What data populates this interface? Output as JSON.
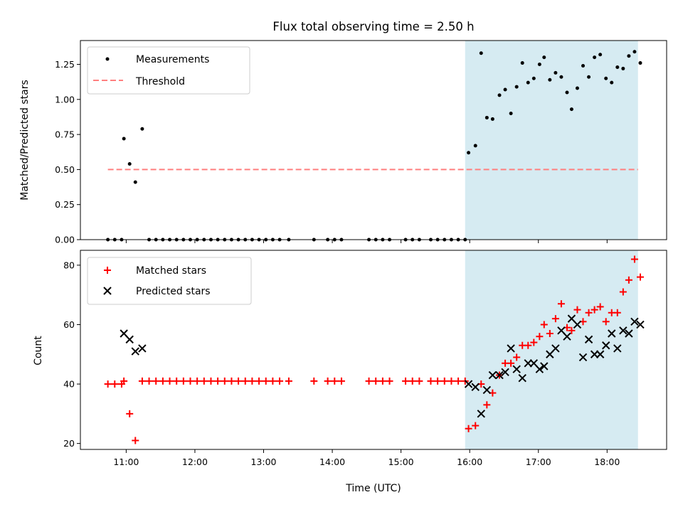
{
  "chart_data": [
    {
      "type": "scatter",
      "title": "Flux total observing time = 2.50 h",
      "xlabel": "",
      "ylabel": "Matched/Predicted stars",
      "ylim": [
        0,
        1.42
      ],
      "yticks": [
        "0.00",
        "0.25",
        "0.50",
        "0.75",
        "1.00",
        "1.25"
      ],
      "ytick_values": [
        0,
        0.25,
        0.5,
        0.75,
        1.0,
        1.25
      ],
      "xlim": [
        "10:20",
        "18:52"
      ],
      "x_tick_labels_visible": false,
      "legend": "top-left",
      "shaded_span": {
        "x0": "15:56",
        "x1": "18:27",
        "color": "#add8e6"
      },
      "threshold": {
        "name": "Threshold",
        "y": 0.5,
        "x0": "10:44",
        "x1": "18:27",
        "color": "#ff7f7f",
        "style": "dashed"
      },
      "series": [
        {
          "name": "Measurements",
          "marker": "dot",
          "color": "#000000",
          "points": [
            [
              "10:44",
              0
            ],
            [
              "10:50",
              0
            ],
            [
              "10:56",
              0
            ],
            [
              "10:58",
              0.72
            ],
            [
              "11:03",
              0.54
            ],
            [
              "11:08",
              0.41
            ],
            [
              "11:14",
              0.79
            ],
            [
              "11:20",
              0
            ],
            [
              "11:26",
              0
            ],
            [
              "11:32",
              0
            ],
            [
              "11:38",
              0
            ],
            [
              "11:44",
              0
            ],
            [
              "11:50",
              0
            ],
            [
              "11:56",
              0
            ],
            [
              "12:02",
              0
            ],
            [
              "12:08",
              0
            ],
            [
              "12:14",
              0
            ],
            [
              "12:20",
              0
            ],
            [
              "12:26",
              0
            ],
            [
              "12:32",
              0
            ],
            [
              "12:38",
              0
            ],
            [
              "12:44",
              0
            ],
            [
              "12:50",
              0
            ],
            [
              "12:56",
              0
            ],
            [
              "13:02",
              0
            ],
            [
              "13:08",
              0
            ],
            [
              "13:14",
              0
            ],
            [
              "13:22",
              0
            ],
            [
              "13:44",
              0
            ],
            [
              "13:56",
              0
            ],
            [
              "14:02",
              0
            ],
            [
              "14:08",
              0
            ],
            [
              "14:32",
              0
            ],
            [
              "14:38",
              0
            ],
            [
              "14:44",
              0
            ],
            [
              "14:50",
              0
            ],
            [
              "15:04",
              0
            ],
            [
              "15:10",
              0
            ],
            [
              "15:16",
              0
            ],
            [
              "15:26",
              0
            ],
            [
              "15:32",
              0
            ],
            [
              "15:38",
              0
            ],
            [
              "15:44",
              0
            ],
            [
              "15:50",
              0
            ],
            [
              "15:56",
              0
            ],
            [
              "15:59",
              0.62
            ],
            [
              "16:05",
              0.67
            ],
            [
              "16:10",
              1.33
            ],
            [
              "16:15",
              0.87
            ],
            [
              "16:20",
              0.86
            ],
            [
              "16:26",
              1.03
            ],
            [
              "16:31",
              1.07
            ],
            [
              "16:36",
              0.9
            ],
            [
              "16:41",
              1.09
            ],
            [
              "16:46",
              1.26
            ],
            [
              "16:51",
              1.12
            ],
            [
              "16:56",
              1.15
            ],
            [
              "17:01",
              1.25
            ],
            [
              "17:05",
              1.3
            ],
            [
              "17:10",
              1.14
            ],
            [
              "17:15",
              1.19
            ],
            [
              "17:20",
              1.16
            ],
            [
              "17:25",
              1.05
            ],
            [
              "17:29",
              0.93
            ],
            [
              "17:34",
              1.08
            ],
            [
              "17:39",
              1.24
            ],
            [
              "17:44",
              1.16
            ],
            [
              "17:49",
              1.3
            ],
            [
              "17:54",
              1.32
            ],
            [
              "17:59",
              1.15
            ],
            [
              "18:04",
              1.12
            ],
            [
              "18:09",
              1.23
            ],
            [
              "18:14",
              1.22
            ],
            [
              "18:19",
              1.31
            ],
            [
              "18:24",
              1.34
            ],
            [
              "18:29",
              1.26
            ]
          ]
        }
      ]
    },
    {
      "type": "scatter",
      "title": "",
      "xlabel": "Time (UTC)",
      "ylabel": "Count",
      "ylim": [
        18,
        85
      ],
      "yticks": [
        "20",
        "40",
        "60",
        "80"
      ],
      "ytick_values": [
        20,
        40,
        60,
        80
      ],
      "xlim": [
        "10:20",
        "18:52"
      ],
      "xticks": [
        "11:00",
        "12:00",
        "13:00",
        "14:00",
        "15:00",
        "16:00",
        "17:00",
        "18:00"
      ],
      "legend": "top-left",
      "shaded_span": {
        "x0": "15:56",
        "x1": "18:27",
        "color": "#add8e6"
      },
      "series": [
        {
          "name": "Matched stars",
          "marker": "plus",
          "color": "#ff0000",
          "points": [
            [
              "10:44",
              40
            ],
            [
              "10:50",
              40
            ],
            [
              "10:56",
              40
            ],
            [
              "10:58",
              41
            ],
            [
              "11:03",
              30
            ],
            [
              "11:08",
              21
            ],
            [
              "11:14",
              41
            ],
            [
              "11:20",
              41
            ],
            [
              "11:26",
              41
            ],
            [
              "11:32",
              41
            ],
            [
              "11:38",
              41
            ],
            [
              "11:44",
              41
            ],
            [
              "11:50",
              41
            ],
            [
              "11:56",
              41
            ],
            [
              "12:02",
              41
            ],
            [
              "12:08",
              41
            ],
            [
              "12:14",
              41
            ],
            [
              "12:20",
              41
            ],
            [
              "12:26",
              41
            ],
            [
              "12:32",
              41
            ],
            [
              "12:38",
              41
            ],
            [
              "12:44",
              41
            ],
            [
              "12:50",
              41
            ],
            [
              "12:56",
              41
            ],
            [
              "13:02",
              41
            ],
            [
              "13:08",
              41
            ],
            [
              "13:14",
              41
            ],
            [
              "13:22",
              41
            ],
            [
              "13:44",
              41
            ],
            [
              "13:56",
              41
            ],
            [
              "14:02",
              41
            ],
            [
              "14:08",
              41
            ],
            [
              "14:32",
              41
            ],
            [
              "14:38",
              41
            ],
            [
              "14:44",
              41
            ],
            [
              "14:50",
              41
            ],
            [
              "15:04",
              41
            ],
            [
              "15:10",
              41
            ],
            [
              "15:16",
              41
            ],
            [
              "15:26",
              41
            ],
            [
              "15:32",
              41
            ],
            [
              "15:38",
              41
            ],
            [
              "15:44",
              41
            ],
            [
              "15:50",
              41
            ],
            [
              "15:56",
              41
            ],
            [
              "15:59",
              25
            ],
            [
              "16:05",
              26
            ],
            [
              "16:10",
              40
            ],
            [
              "16:15",
              33
            ],
            [
              "16:20",
              37
            ],
            [
              "16:26",
              43
            ],
            [
              "16:31",
              47
            ],
            [
              "16:36",
              47
            ],
            [
              "16:41",
              49
            ],
            [
              "16:46",
              53
            ],
            [
              "16:51",
              53
            ],
            [
              "16:56",
              54
            ],
            [
              "17:01",
              56
            ],
            [
              "17:05",
              60
            ],
            [
              "17:10",
              57
            ],
            [
              "17:15",
              62
            ],
            [
              "17:20",
              67
            ],
            [
              "17:25",
              59
            ],
            [
              "17:29",
              58
            ],
            [
              "17:34",
              65
            ],
            [
              "17:39",
              61
            ],
            [
              "17:44",
              64
            ],
            [
              "17:49",
              65
            ],
            [
              "17:54",
              66
            ],
            [
              "17:59",
              61
            ],
            [
              "18:04",
              64
            ],
            [
              "18:09",
              64
            ],
            [
              "18:14",
              71
            ],
            [
              "18:19",
              75
            ],
            [
              "18:24",
              82
            ],
            [
              "18:29",
              76
            ]
          ]
        },
        {
          "name": "Predicted stars",
          "marker": "x",
          "color": "#000000",
          "points": [
            [
              "10:58",
              57
            ],
            [
              "11:03",
              55
            ],
            [
              "11:08",
              51
            ],
            [
              "11:14",
              52
            ],
            [
              "15:59",
              40
            ],
            [
              "16:05",
              39
            ],
            [
              "16:10",
              30
            ],
            [
              "16:15",
              38
            ],
            [
              "16:20",
              43
            ],
            [
              "16:26",
              43
            ],
            [
              "16:31",
              44
            ],
            [
              "16:36",
              52
            ],
            [
              "16:41",
              45
            ],
            [
              "16:46",
              42
            ],
            [
              "16:51",
              47
            ],
            [
              "16:56",
              47
            ],
            [
              "17:01",
              45
            ],
            [
              "17:05",
              46
            ],
            [
              "17:10",
              50
            ],
            [
              "17:15",
              52
            ],
            [
              "17:20",
              58
            ],
            [
              "17:25",
              56
            ],
            [
              "17:29",
              62
            ],
            [
              "17:34",
              60
            ],
            [
              "17:39",
              49
            ],
            [
              "17:44",
              55
            ],
            [
              "17:49",
              50
            ],
            [
              "17:54",
              50
            ],
            [
              "17:59",
              53
            ],
            [
              "18:04",
              57
            ],
            [
              "18:09",
              52
            ],
            [
              "18:14",
              58
            ],
            [
              "18:19",
              57
            ],
            [
              "18:24",
              61
            ],
            [
              "18:29",
              60
            ]
          ]
        }
      ]
    }
  ]
}
